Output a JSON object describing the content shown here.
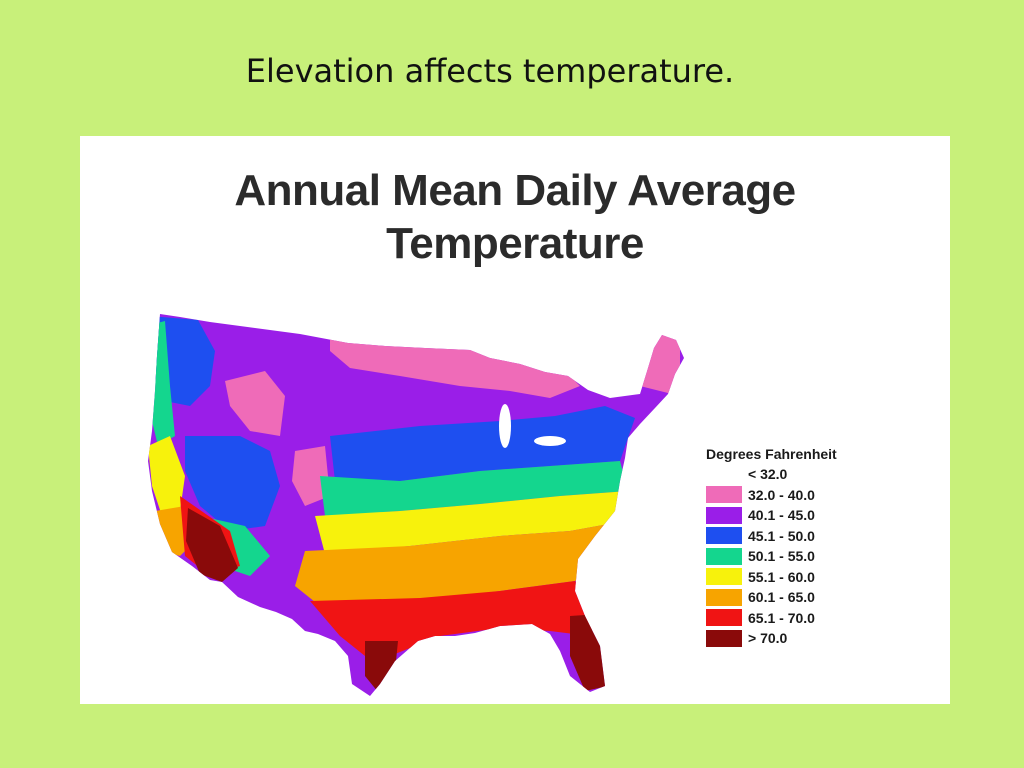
{
  "slide": {
    "heading": "Elevation affects temperature."
  },
  "map": {
    "title_line1": "Annual Mean Daily Average",
    "title_line2": "Temperature",
    "legend": {
      "title": "Degrees Fahrenheit",
      "entries": [
        {
          "label": "< 32.0",
          "color": "#ffffff"
        },
        {
          "label": "32.0 - 40.0",
          "color": "#ef6bb8"
        },
        {
          "label": "40.1 - 45.0",
          "color": "#9a1ee8"
        },
        {
          "label": "45.1 - 50.0",
          "color": "#1e4ff0"
        },
        {
          "label": "50.1 - 55.0",
          "color": "#14d68e"
        },
        {
          "label": "55.1 - 60.0",
          "color": "#f7f20c"
        },
        {
          "label": "60.1 - 65.0",
          "color": "#f7a400"
        },
        {
          "label": "65.1 - 70.0",
          "color": "#f01414"
        },
        {
          "label": "> 70.0",
          "color": "#8a0a0a"
        }
      ]
    }
  }
}
